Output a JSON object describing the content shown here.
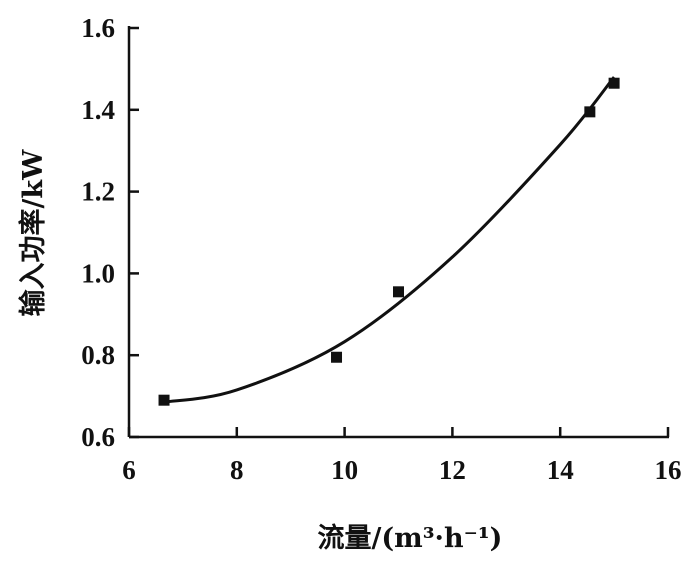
{
  "chart_data": {
    "type": "scatter",
    "xlabel": "流量/(m³·h⁻¹)",
    "ylabel": "输入功率/kW",
    "xlim": [
      6,
      16
    ],
    "ylim": [
      0.6,
      1.6
    ],
    "x_ticks": [
      "6",
      "8",
      "10",
      "12",
      "14",
      "16"
    ],
    "y_ticks": [
      "0.6",
      "0.8",
      "1.0",
      "1.2",
      "1.4",
      "1.6"
    ],
    "grid": false,
    "series": [
      {
        "marker": "square",
        "color": "#111111",
        "points": [
          {
            "x": 6.65,
            "y": 0.69
          },
          {
            "x": 9.85,
            "y": 0.795
          },
          {
            "x": 11.0,
            "y": 0.955
          },
          {
            "x": 14.55,
            "y": 1.395
          },
          {
            "x": 15.0,
            "y": 1.465
          }
        ]
      }
    ],
    "fit_curve": {
      "type": "quadratic",
      "color": "#111111",
      "points": [
        {
          "x": 6.65,
          "y": 0.685
        },
        {
          "x": 8.0,
          "y": 0.715
        },
        {
          "x": 10.0,
          "y": 0.833
        },
        {
          "x": 12.0,
          "y": 1.04
        },
        {
          "x": 14.0,
          "y": 1.315
        },
        {
          "x": 15.0,
          "y": 1.48
        }
      ]
    }
  }
}
